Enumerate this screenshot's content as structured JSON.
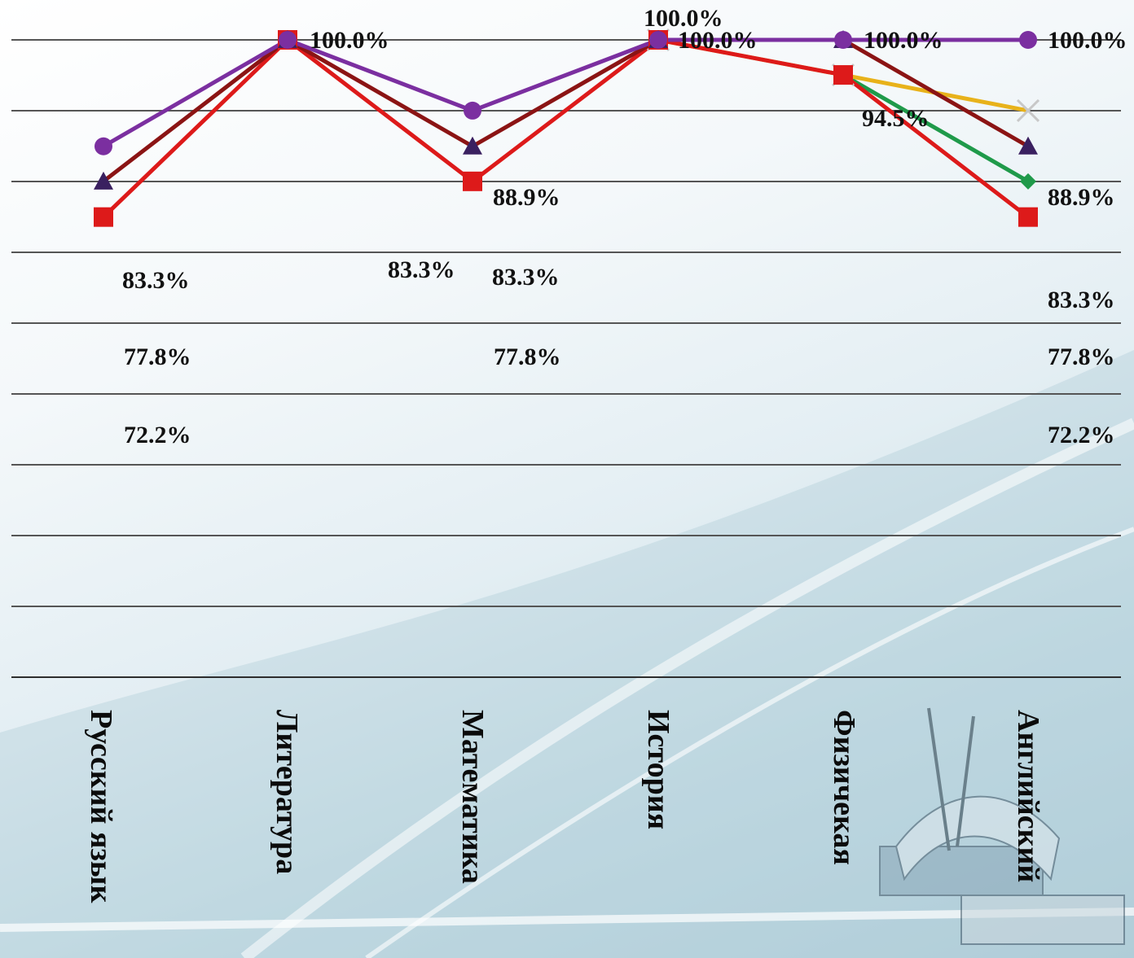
{
  "chart_data": {
    "type": "line",
    "categories": [
      "Русский язык",
      "Литература",
      "Математика",
      "История",
      "Физичекая",
      "Английский"
    ],
    "ylim": [
      0,
      1
    ],
    "grid": true,
    "legend": "none",
    "series": [
      {
        "color": "#7b2fa0",
        "marker": "circle",
        "values": [
          0.833,
          1.0,
          0.889,
          1.0,
          1.0,
          1.0
        ],
        "labels": [
          "83.3%",
          "100.0%",
          "88.9%",
          "100.0%",
          "100.0%",
          "100.0%"
        ]
      },
      {
        "color": "#8b1414",
        "marker": "triangle",
        "values": [
          0.778,
          1.0,
          0.833,
          1.0,
          1.0,
          0.833
        ],
        "labels": [
          "77.8%",
          "100.0%",
          "83.3%",
          "100.0%",
          "100.0%",
          "83.3%"
        ]
      },
      {
        "color": "#dd1a1a",
        "marker": "square",
        "values": [
          0.722,
          1.0,
          0.778,
          1.0,
          0.945,
          0.722
        ],
        "labels": [
          "72.2%",
          "100.0%",
          "77.8%",
          "100.0%",
          "94.5%",
          "72.2%"
        ]
      },
      {
        "color": "#1f9a4a",
        "marker": "diamond",
        "values": [
          null,
          null,
          null,
          null,
          0.945,
          0.778
        ],
        "labels": [
          "",
          "",
          "",
          "",
          "",
          "77.8%"
        ]
      },
      {
        "color": "#e8b21a",
        "marker": "x",
        "values": [
          null,
          null,
          null,
          1.0,
          0.945,
          0.889
        ],
        "labels": [
          "",
          "",
          "",
          "",
          "",
          "88.9%"
        ]
      }
    ],
    "extra_labels": [
      "83.3%",
      "83.3%",
      "100.0%",
      "83.3%"
    ]
  }
}
